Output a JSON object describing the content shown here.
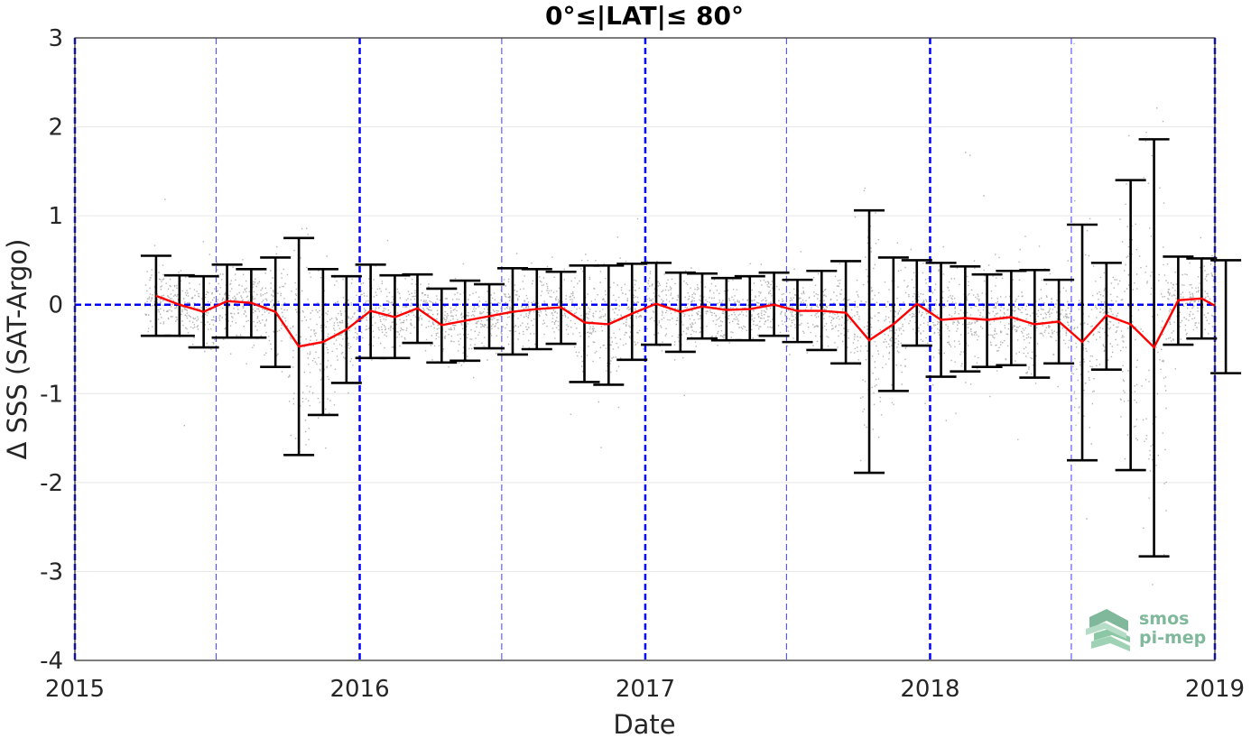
{
  "chart_data": {
    "type": "scatter",
    "title": "0°≤|LAT|≤ 80°",
    "xlabel": "Date",
    "ylabel": "Δ SSS (SAT-Argo)",
    "xlim": [
      "2015-01-01",
      "2019-01-01"
    ],
    "ylim": [
      -4,
      3
    ],
    "x_ticks": [
      "2015",
      "2016",
      "2017",
      "2018",
      "2019"
    ],
    "y_ticks": [
      "3",
      "2",
      "1",
      "0",
      "-1",
      "-2",
      "-3",
      "-4"
    ],
    "grid": true,
    "zero_line_color": "#0000ff",
    "year_line_color": "#0000ff",
    "half_year_line_color": "#4d4dff",
    "mean_line_color": "#ff0000",
    "errorbar_color": "#000000",
    "scatter_color": "#9a9a9a",
    "monthly_series": [
      {
        "date": "2015-04-15",
        "mean": 0.1,
        "low": -0.35,
        "high": 0.55
      },
      {
        "date": "2015-05-15",
        "mean": 0.0,
        "low": -0.35,
        "high": 0.33
      },
      {
        "date": "2015-06-15",
        "mean": -0.08,
        "low": -0.48,
        "high": 0.32
      },
      {
        "date": "2015-07-15",
        "mean": 0.04,
        "low": -0.37,
        "high": 0.45
      },
      {
        "date": "2015-08-15",
        "mean": 0.02,
        "low": -0.37,
        "high": 0.4
      },
      {
        "date": "2015-09-15",
        "mean": -0.08,
        "low": -0.7,
        "high": 0.53
      },
      {
        "date": "2015-10-15",
        "mean": -0.47,
        "low": -1.69,
        "high": 0.75
      },
      {
        "date": "2015-11-15",
        "mean": -0.42,
        "low": -1.24,
        "high": 0.4
      },
      {
        "date": "2015-12-15",
        "mean": -0.28,
        "low": -0.88,
        "high": 0.32
      },
      {
        "date": "2016-01-15",
        "mean": -0.07,
        "low": -0.6,
        "high": 0.45
      },
      {
        "date": "2016-02-15",
        "mean": -0.14,
        "low": -0.6,
        "high": 0.33
      },
      {
        "date": "2016-03-15",
        "mean": -0.04,
        "low": -0.43,
        "high": 0.34
      },
      {
        "date": "2016-04-15",
        "mean": -0.23,
        "low": -0.65,
        "high": 0.18
      },
      {
        "date": "2016-05-15",
        "mean": -0.18,
        "low": -0.63,
        "high": 0.27
      },
      {
        "date": "2016-06-15",
        "mean": -0.13,
        "low": -0.49,
        "high": 0.23
      },
      {
        "date": "2016-07-15",
        "mean": -0.08,
        "low": -0.56,
        "high": 0.41
      },
      {
        "date": "2016-08-15",
        "mean": -0.05,
        "low": -0.5,
        "high": 0.4
      },
      {
        "date": "2016-09-15",
        "mean": -0.03,
        "low": -0.44,
        "high": 0.37
      },
      {
        "date": "2016-10-15",
        "mean": -0.2,
        "low": -0.87,
        "high": 0.44
      },
      {
        "date": "2016-11-15",
        "mean": -0.22,
        "low": -0.9,
        "high": 0.44
      },
      {
        "date": "2016-12-15",
        "mean": -0.1,
        "low": -0.62,
        "high": 0.46
      },
      {
        "date": "2017-01-15",
        "mean": 0.01,
        "low": -0.45,
        "high": 0.47
      },
      {
        "date": "2017-02-15",
        "mean": -0.08,
        "low": -0.53,
        "high": 0.36
      },
      {
        "date": "2017-03-15",
        "mean": -0.02,
        "low": -0.38,
        "high": 0.35
      },
      {
        "date": "2017-04-15",
        "mean": -0.06,
        "low": -0.4,
        "high": 0.3
      },
      {
        "date": "2017-05-15",
        "mean": -0.05,
        "low": -0.4,
        "high": 0.32
      },
      {
        "date": "2017-06-15",
        "mean": 0.0,
        "low": -0.35,
        "high": 0.36
      },
      {
        "date": "2017-07-15",
        "mean": -0.07,
        "low": -0.42,
        "high": 0.28
      },
      {
        "date": "2017-08-15",
        "mean": -0.07,
        "low": -0.51,
        "high": 0.38
      },
      {
        "date": "2017-09-15",
        "mean": -0.09,
        "low": -0.66,
        "high": 0.49
      },
      {
        "date": "2017-10-15",
        "mean": -0.4,
        "low": -1.89,
        "high": 1.06
      },
      {
        "date": "2017-11-15",
        "mean": -0.22,
        "low": -0.97,
        "high": 0.53
      },
      {
        "date": "2017-12-15",
        "mean": 0.01,
        "low": -0.46,
        "high": 0.5
      },
      {
        "date": "2018-01-15",
        "mean": -0.17,
        "low": -0.81,
        "high": 0.47
      },
      {
        "date": "2018-02-15",
        "mean": -0.15,
        "low": -0.75,
        "high": 0.43
      },
      {
        "date": "2018-03-15",
        "mean": -0.17,
        "low": -0.7,
        "high": 0.34
      },
      {
        "date": "2018-04-15",
        "mean": -0.14,
        "low": -0.68,
        "high": 0.38
      },
      {
        "date": "2018-05-15",
        "mean": -0.22,
        "low": -0.82,
        "high": 0.39
      },
      {
        "date": "2018-06-15",
        "mean": -0.19,
        "low": -0.66,
        "high": 0.28
      },
      {
        "date": "2018-07-15",
        "mean": -0.42,
        "low": -1.75,
        "high": 0.9
      },
      {
        "date": "2018-08-15",
        "mean": -0.12,
        "low": -0.73,
        "high": 0.47
      },
      {
        "date": "2018-09-15",
        "mean": -0.22,
        "low": -1.86,
        "high": 1.4
      },
      {
        "date": "2018-10-15",
        "mean": -0.48,
        "low": -2.83,
        "high": 1.86
      },
      {
        "date": "2018-11-15",
        "mean": 0.05,
        "low": -0.45,
        "high": 0.54
      },
      {
        "date": "2018-12-15",
        "mean": 0.07,
        "low": -0.38,
        "high": 0.52
      },
      {
        "date": "2019-01-15",
        "mean": -0.08,
        "low": -0.77,
        "high": 0.5
      }
    ]
  },
  "logo": {
    "line1": "smos",
    "line2": "pi-mep",
    "color": "#7fb89a"
  }
}
